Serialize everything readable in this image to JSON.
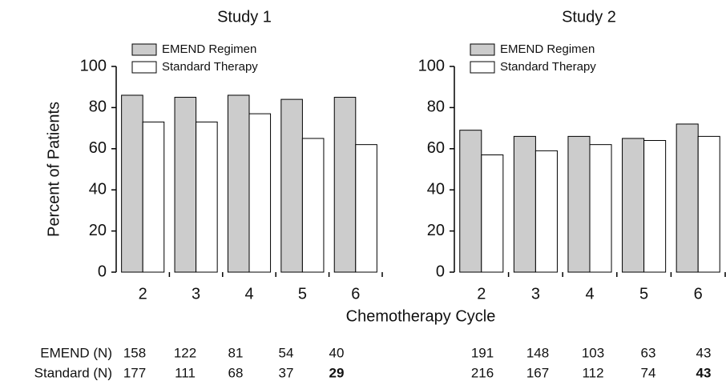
{
  "chart_data": [
    {
      "type": "bar",
      "title": "Study 1",
      "ylabel": "Percent of Patients",
      "categories": [
        2,
        3,
        4,
        5,
        6
      ],
      "series": [
        {
          "name": "EMEND Regimen",
          "color": "#cccccc",
          "values": [
            86,
            85,
            86,
            84,
            85
          ]
        },
        {
          "name": "Standard Therapy",
          "color": "#ffffff",
          "values": [
            73,
            73,
            77,
            65,
            62
          ]
        }
      ],
      "ylim": [
        0,
        100
      ],
      "yticks": [
        0,
        20,
        40,
        60,
        80,
        100
      ]
    },
    {
      "type": "bar",
      "title": "Study 2",
      "categories": [
        2,
        3,
        4,
        5,
        6
      ],
      "series": [
        {
          "name": "EMEND Regimen",
          "color": "#cccccc",
          "values": [
            69,
            66,
            66,
            65,
            72
          ]
        },
        {
          "name": "Standard Therapy",
          "color": "#ffffff",
          "values": [
            57,
            59,
            62,
            64,
            66
          ]
        }
      ],
      "ylim": [
        0,
        100
      ],
      "yticks": [
        0,
        20,
        40,
        60,
        80,
        100
      ]
    }
  ],
  "xlabel": "Chemotherapy Cycle",
  "n_table": {
    "rows": [
      {
        "label": "EMEND (N)",
        "study_1": [
          158,
          122,
          81,
          54,
          40
        ],
        "study_2": [
          191,
          148,
          103,
          63,
          43
        ]
      },
      {
        "label": "Standard (N)",
        "study_1": [
          177,
          111,
          68,
          37,
          29
        ],
        "study_2": [
          216,
          167,
          112,
          74,
          43
        ]
      }
    ]
  }
}
